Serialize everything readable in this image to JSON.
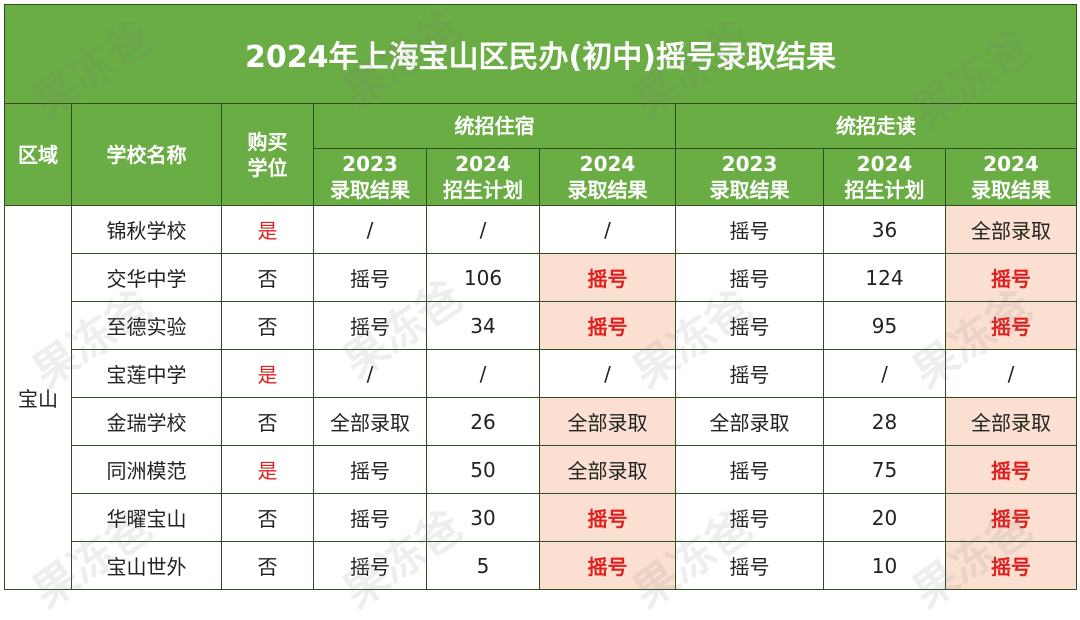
{
  "title": "2024年上海宝山区民办(初中)摇号录取结果",
  "headers": {
    "region": "区域",
    "school": "学校名称",
    "buy_line1": "购买",
    "buy_line2": "学位",
    "group_board": "统招住宿",
    "group_day": "统招走读",
    "sub": [
      {
        "year": "2023",
        "label": "录取结果"
      },
      {
        "year": "2024",
        "label": "招生计划"
      },
      {
        "year": "2024",
        "label": "录取结果"
      },
      {
        "year": "2023",
        "label": "录取结果"
      },
      {
        "year": "2024",
        "label": "招生计划"
      },
      {
        "year": "2024",
        "label": "录取结果"
      }
    ]
  },
  "region": "宝山",
  "rows": [
    {
      "school": "锦秋学校",
      "buy": "是",
      "b2023": "/",
      "bplan": "/",
      "b2024": "/",
      "d2023": "摇号",
      "dplan": "36",
      "d2024": "全部录取"
    },
    {
      "school": "交华中学",
      "buy": "否",
      "b2023": "摇号",
      "bplan": "106",
      "b2024": "摇号",
      "d2023": "摇号",
      "dplan": "124",
      "d2024": "摇号"
    },
    {
      "school": "至德实验",
      "buy": "否",
      "b2023": "摇号",
      "bplan": "34",
      "b2024": "摇号",
      "d2023": "摇号",
      "dplan": "95",
      "d2024": "摇号"
    },
    {
      "school": "宝莲中学",
      "buy": "是",
      "b2023": "/",
      "bplan": "/",
      "b2024": "/",
      "d2023": "摇号",
      "dplan": "/",
      "d2024": "/"
    },
    {
      "school": "金瑞学校",
      "buy": "否",
      "b2023": "全部录取",
      "bplan": "26",
      "b2024": "全部录取",
      "d2023": "全部录取",
      "dplan": "28",
      "d2024": "全部录取"
    },
    {
      "school": "同洲模范",
      "buy": "是",
      "b2023": "摇号",
      "bplan": "50",
      "b2024": "全部录取",
      "d2023": "摇号",
      "dplan": "75",
      "d2024": "摇号"
    },
    {
      "school": "华曜宝山",
      "buy": "否",
      "b2023": "摇号",
      "bplan": "30",
      "b2024": "摇号",
      "d2023": "摇号",
      "dplan": "20",
      "d2024": "摇号"
    },
    {
      "school": "宝山世外",
      "buy": "否",
      "b2023": "摇号",
      "bplan": "5",
      "b2024": "摇号",
      "d2023": "摇号",
      "dplan": "10",
      "d2024": "摇号"
    }
  ],
  "watermark": "果冻爸",
  "colors": {
    "header_green": "#6aad44",
    "highlight": "#fbe0d1",
    "red": "#e02020"
  }
}
